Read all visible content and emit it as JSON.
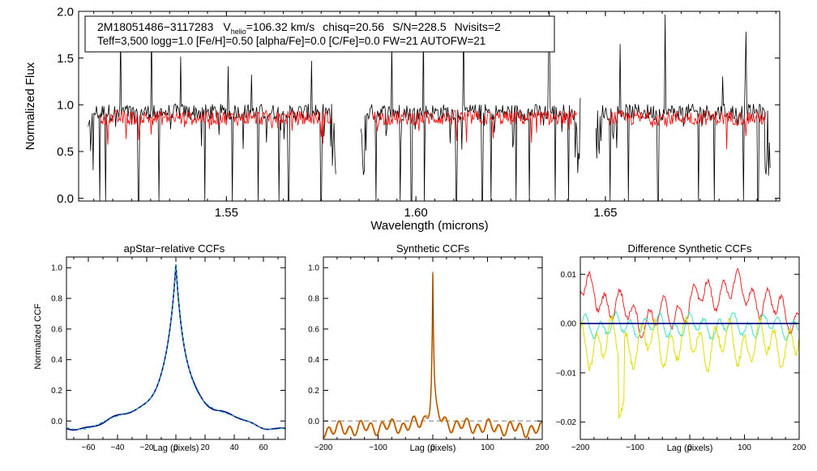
{
  "header": {
    "star_id": "2M18051486−3117283",
    "vhelio_label": "V",
    "vhelio_sub": "helio",
    "vhelio_value": "=106.32 km/s",
    "chisq": "chisq=20.56",
    "snr": "S/N=228.5",
    "nvisits": "Nvisits=2",
    "line2": "Teff=3,500 logg=1.0 [Fe/H]=0.50 [alpha/Fe]=0.0 [C/Fe]=0.0 FW=21 AUTOFW=21"
  },
  "colors": {
    "axis": "#000000",
    "observed": "#000000",
    "model": "#ff0000",
    "ccf_dark": "#000080",
    "ccf_teal": "#20b2aa",
    "ccf_orange": "#ff8c00",
    "ccf_brown": "#8b4513",
    "diff_red": "#e8262a",
    "diff_cyan": "#40e0c0",
    "diff_yellow": "#dede00",
    "dashed_gray": "#808080"
  },
  "chart_data": [
    {
      "id": "spectrum",
      "type": "line",
      "title": "",
      "xlabel": "Wavelength (microns)",
      "ylabel": "Normalized Flux",
      "xlim": [
        1.511,
        1.696
      ],
      "ylim": [
        -0.03,
        2.0
      ],
      "xticks": [
        1.55,
        1.6,
        1.65
      ],
      "xtick_labels": [
        "1.55",
        "1.60",
        "1.65"
      ],
      "yticks": [
        0.0,
        0.5,
        1.0,
        1.5,
        2.0
      ],
      "ytick_labels": [
        "0.0",
        "0.5",
        "1.0",
        "1.5",
        "2.0"
      ],
      "chips": [
        [
          1.5135,
          1.579
        ],
        [
          1.5855,
          1.6435
        ],
        [
          1.6475,
          1.6935
        ]
      ],
      "model_chips": [
        [
          1.5165,
          1.578
        ],
        [
          1.5885,
          1.6425
        ],
        [
          1.651,
          1.6925
        ]
      ],
      "series": [
        {
          "name": "observed",
          "color": "#000000",
          "base": 0.92,
          "scatter": 0.09
        },
        {
          "name": "model",
          "color": "#ff0000",
          "base": 0.86,
          "scatter": 0.08
        }
      ],
      "absorption_lines": [
        1.5165,
        1.5182,
        1.5268,
        1.5322,
        1.5443,
        1.5515,
        1.5583,
        1.5639,
        1.5664,
        1.575,
        1.5895,
        1.5958,
        1.5988,
        1.6023,
        1.6107,
        1.6175,
        1.6198,
        1.6264,
        1.63,
        1.6367,
        1.6403,
        1.6476,
        1.6512,
        1.656,
        1.6639,
        1.6745,
        1.6788,
        1.6865,
        1.6903
      ],
      "emission_spikes": [
        1.522,
        1.5302,
        1.5379,
        1.5505,
        1.5567,
        1.5725,
        1.5937,
        1.602,
        1.6125,
        1.6351,
        1.6539,
        1.6658,
        1.681,
        1.687
      ],
      "legend": "none"
    },
    {
      "id": "apstar-ccf",
      "type": "line",
      "title": "apStar−relative CCFs",
      "xlabel": "Lag (pixels)",
      "ylabel": "Normalized CCF",
      "xlim": [
        -75,
        75
      ],
      "ylim": [
        -0.12,
        1.07
      ],
      "xticks": [
        -60,
        -40,
        -20,
        0,
        20,
        40,
        60
      ],
      "xtick_labels": [
        "−60",
        "−40",
        "−20",
        "0",
        "20",
        "40",
        "60"
      ],
      "yticks": [
        0.0,
        0.2,
        0.4,
        0.6,
        0.8,
        1.0
      ],
      "ytick_labels": [
        "0.0",
        "0.2",
        "0.4",
        "0.6",
        "0.8",
        "1.0"
      ],
      "series": [
        {
          "name": "ccf-1",
          "color": "#000080"
        },
        {
          "name": "ccf-2",
          "color": "#20b2aa"
        }
      ],
      "legend": "none"
    },
    {
      "id": "synthetic-ccf",
      "type": "line",
      "title": "Synthetic CCFs",
      "xlabel": "Lag (pixels)",
      "ylabel": "",
      "xlim": [
        -200,
        200
      ],
      "ylim": [
        -0.12,
        1.07
      ],
      "xticks": [
        -200,
        -100,
        0,
        100,
        200
      ],
      "xtick_labels": [
        "−200",
        "−100",
        "0",
        "100",
        "200"
      ],
      "yticks": [
        0.0,
        0.2,
        0.4,
        0.6,
        0.8,
        1.0
      ],
      "ytick_labels": [
        "0.0",
        "0.2",
        "0.4",
        "0.6",
        "0.8",
        "1.0"
      ],
      "zero_line": 0.0,
      "series": [
        {
          "name": "ccf-orange",
          "color": "#ff8c00"
        },
        {
          "name": "ccf-brown",
          "color": "#8b4513"
        }
      ],
      "legend": "none"
    },
    {
      "id": "difference-ccf",
      "type": "line",
      "title": "Difference Synthetic CCFs",
      "xlabel": "Lag (pixels)",
      "ylabel": "",
      "xlim": [
        -200,
        200
      ],
      "ylim": [
        -0.0235,
        0.0135
      ],
      "xticks": [
        -200,
        -100,
        0,
        100,
        200
      ],
      "xtick_labels": [
        "−200",
        "−100",
        "0",
        "100",
        "200"
      ],
      "yticks": [
        -0.02,
        -0.01,
        0.0,
        0.01
      ],
      "ytick_labels": [
        "−0.02",
        "−0.01",
        "0.00",
        "0.01"
      ],
      "zero_line": 0.0,
      "series": [
        {
          "name": "diff-red",
          "color": "#e8262a",
          "offset": 0.004,
          "amp": 0.0045
        },
        {
          "name": "diff-cyan",
          "color": "#40e0c0",
          "offset": -0.0005,
          "amp": 0.003
        },
        {
          "name": "diff-yellow",
          "color": "#dede00",
          "offset": -0.004,
          "amp": 0.006
        }
      ],
      "legend": "none"
    }
  ]
}
